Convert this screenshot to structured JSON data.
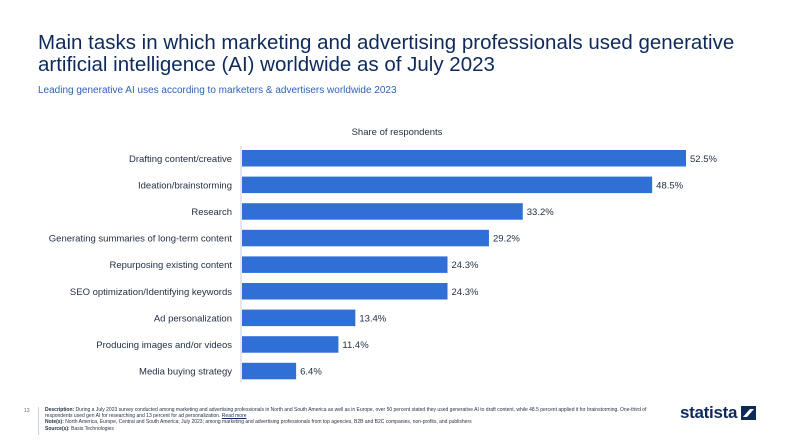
{
  "header": {
    "title": "Main tasks in which marketing and advertising professionals used generative artificial intelligence (AI) worldwide as of July 2023",
    "subtitle": "Leading generative AI uses according to marketers & advertisers worldwide 2023"
  },
  "chart_data": {
    "type": "bar",
    "orientation": "horizontal",
    "xlabel": "Share of respondents",
    "unit": "%",
    "xlim": [
      0,
      60
    ],
    "grid": false,
    "legend": "none",
    "bar_color": "#2f6fd6",
    "categories": [
      "Drafting content/creative",
      "Ideation/brainstorming",
      "Research",
      "Generating summaries of long-term content",
      "Repurposing existing content",
      "SEO optimization/Identifying keywords",
      "Ad personalization",
      "Producing images and/or videos",
      "Media buying strategy"
    ],
    "values": [
      52.5,
      48.5,
      33.2,
      29.2,
      24.3,
      24.3,
      13.4,
      11.4,
      6.4
    ],
    "value_labels": [
      "52.5%",
      "48.5%",
      "33.2%",
      "29.2%",
      "24.3%",
      "24.3%",
      "13.4%",
      "11.4%",
      "6.4%"
    ]
  },
  "footer": {
    "page_number": "13",
    "description_label": "Description:",
    "description_text": "During a July 2023 survey conducted among marketing and advertising professionals in North and South America as well as in Europe, over 50 percent stated they used generative AI to draft content, while 48.5 percent applied it for brainstorming. One-third of respondents used gen AI for researching and 13 percent for ad personalization.",
    "read_more": "Read more",
    "notes_label": "Note(s):",
    "notes_text": "North America, Europe, Central and South America; July 2023; among marketing and advertising professionals from top agencies, B2B and B2C companies, non-profits, and publishers",
    "sources_label": "Source(s):",
    "sources_text": "Basis Technologies",
    "logo_text": "statista"
  }
}
